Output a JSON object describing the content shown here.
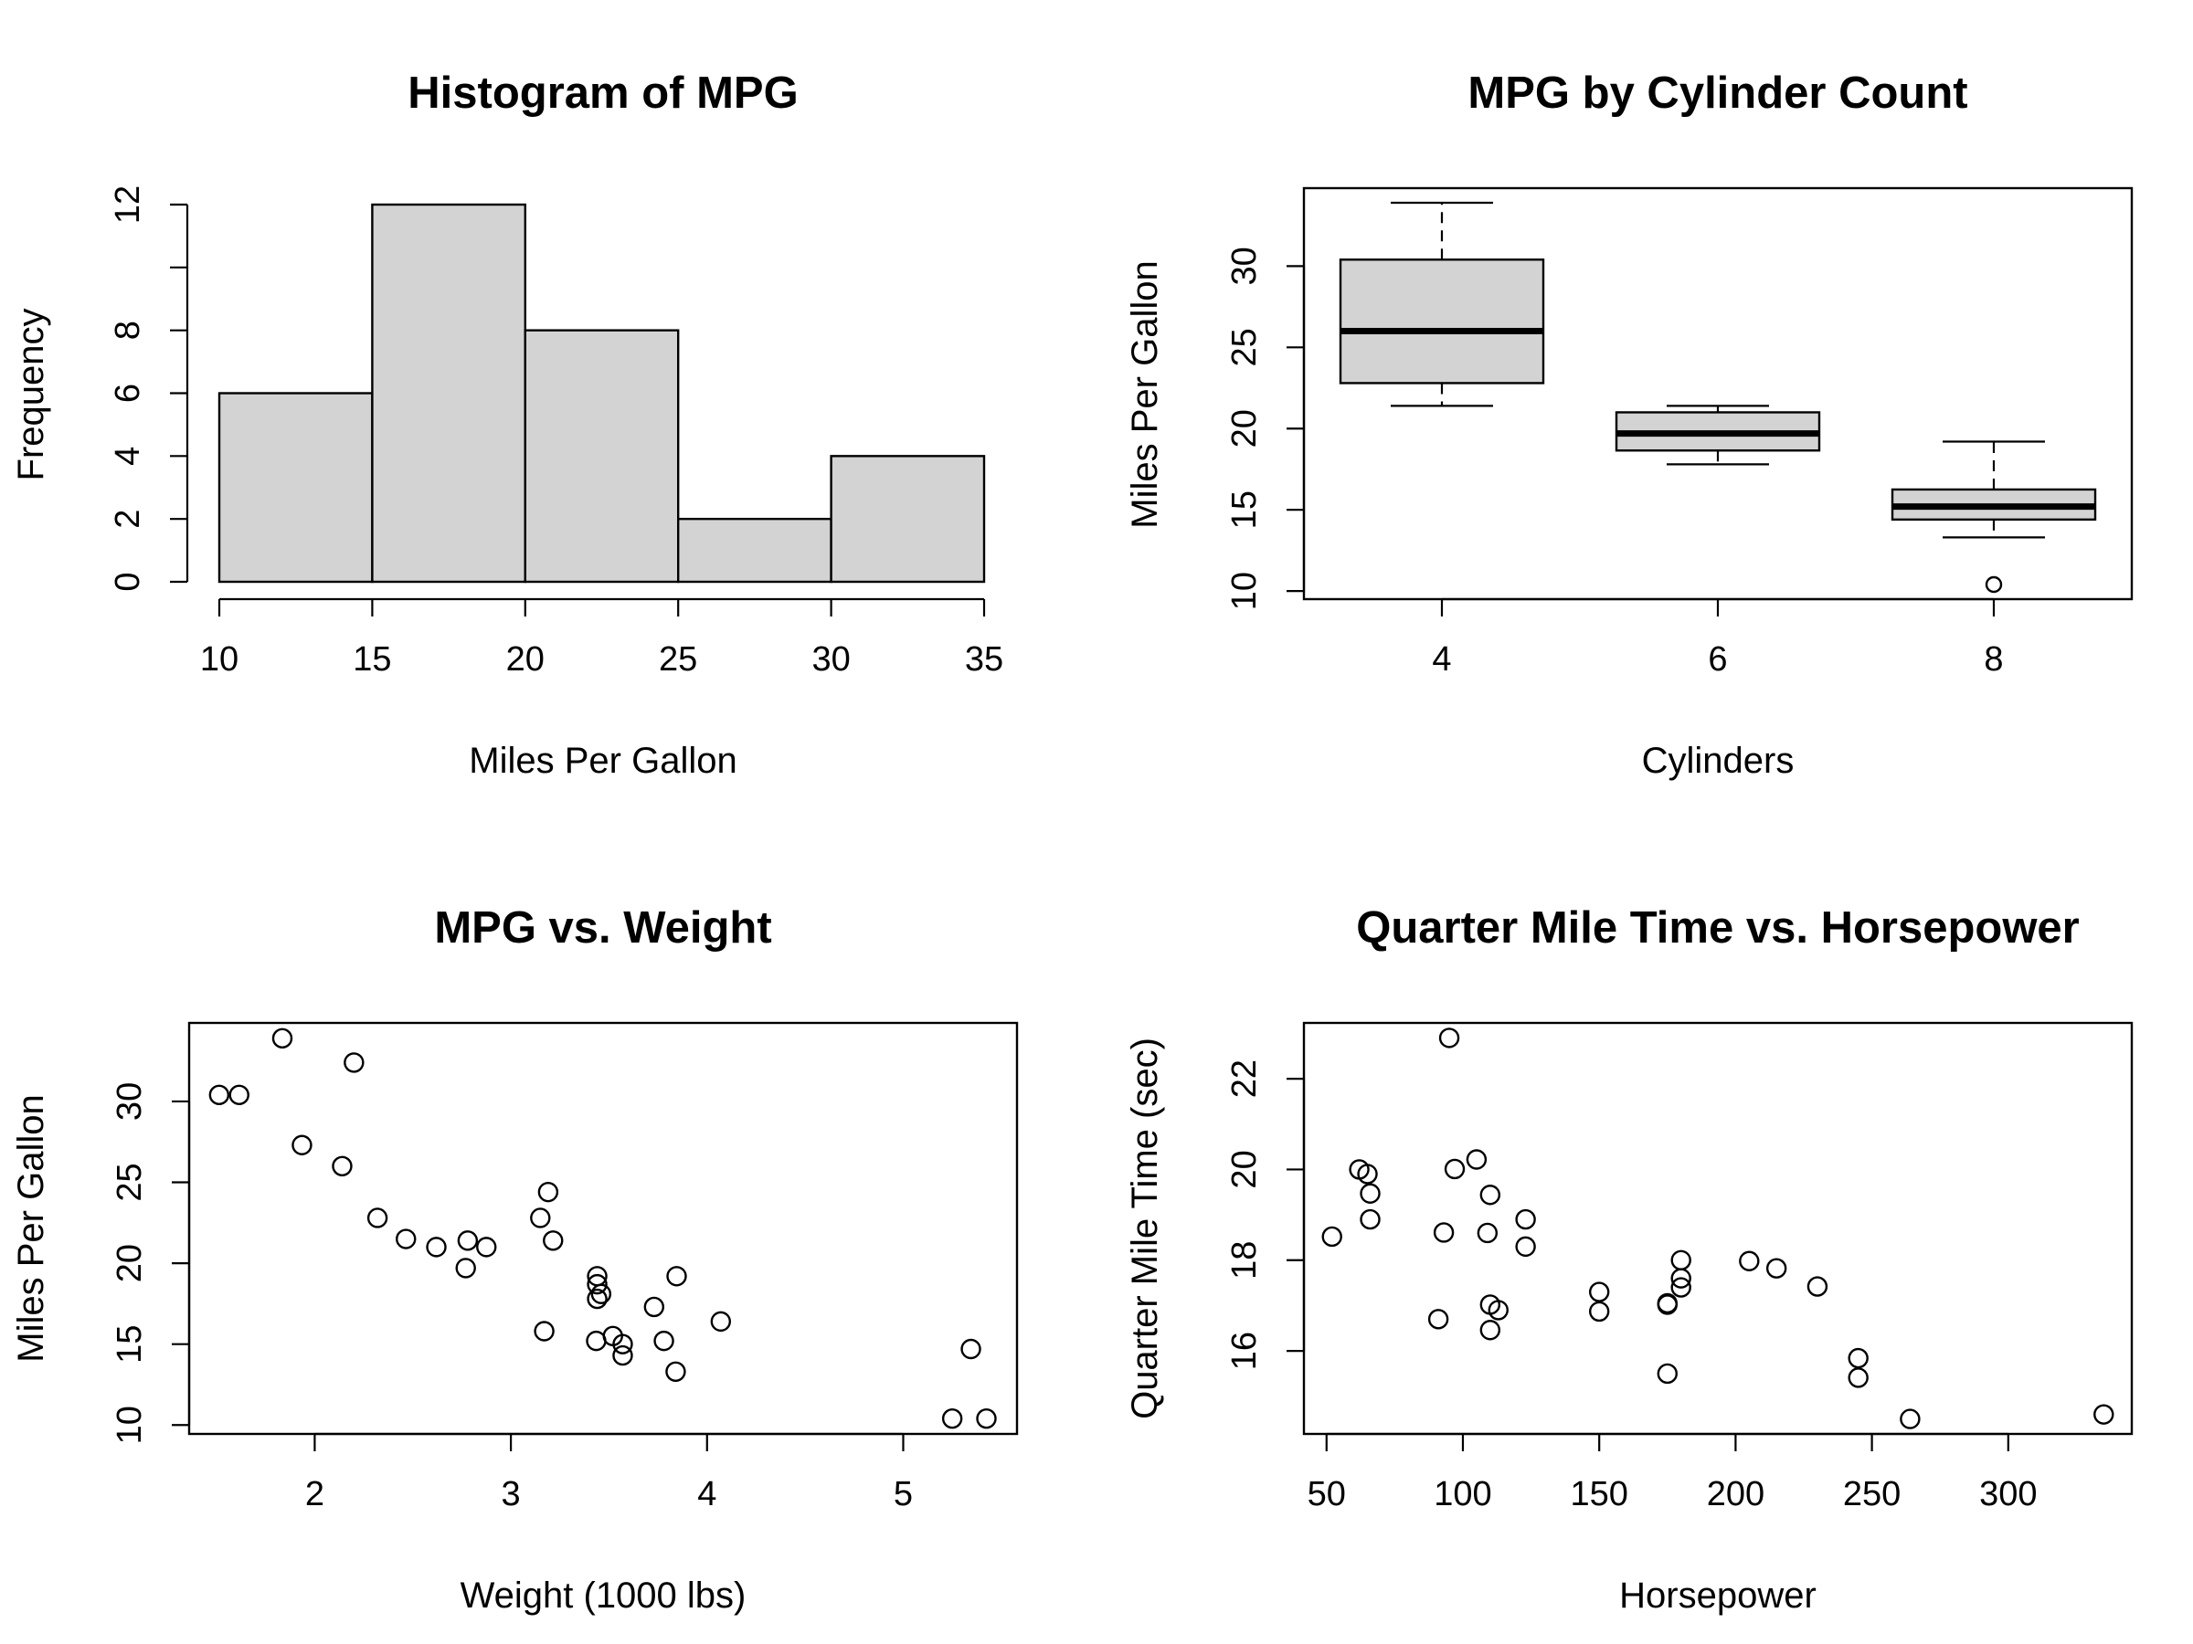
{
  "chart_data": [
    {
      "type": "bar",
      "title": "Histogram of MPG",
      "xlabel": "Miles Per Gallon",
      "ylabel": "Frequency",
      "bins": [
        {
          "from": 10,
          "to": 15,
          "count": 6
        },
        {
          "from": 15,
          "to": 20,
          "count": 12
        },
        {
          "from": 20,
          "to": 25,
          "count": 8
        },
        {
          "from": 25,
          "to": 30,
          "count": 2
        },
        {
          "from": 30,
          "to": 35,
          "count": 4
        }
      ],
      "xticks": [
        10,
        15,
        20,
        25,
        30,
        35
      ],
      "yticks": [
        0,
        2,
        4,
        6,
        8,
        12
      ],
      "xlim": [
        10,
        35
      ],
      "ylim": [
        0,
        12
      ]
    },
    {
      "type": "box",
      "title": "MPG by Cylinder Count",
      "xlabel": "Cylinders",
      "ylabel": "Miles Per Gallon",
      "categories": [
        "4",
        "6",
        "8"
      ],
      "boxes": [
        {
          "lower_whisker": 21.4,
          "q1": 22.8,
          "median": 26.0,
          "q3": 30.4,
          "upper_whisker": 33.9,
          "outliers": []
        },
        {
          "lower_whisker": 17.8,
          "q1": 18.65,
          "median": 19.7,
          "q3": 21.0,
          "upper_whisker": 21.4,
          "outliers": []
        },
        {
          "lower_whisker": 13.3,
          "q1": 14.4,
          "median": 15.2,
          "q3": 16.25,
          "upper_whisker": 19.2,
          "outliers": [
            10.4
          ]
        }
      ],
      "yticks": [
        10,
        15,
        20,
        25,
        30
      ],
      "ylim": [
        9.5,
        34.8
      ]
    },
    {
      "type": "scatter",
      "title": "MPG vs. Weight",
      "xlabel": "Weight (1000 lbs)",
      "ylabel": "Miles Per Gallon",
      "points": [
        [
          1.513,
          30.4
        ],
        [
          1.615,
          30.4
        ],
        [
          1.835,
          33.9
        ],
        [
          1.935,
          27.3
        ],
        [
          2.14,
          26.0
        ],
        [
          2.2,
          32.4
        ],
        [
          2.32,
          22.8
        ],
        [
          2.465,
          21.5
        ],
        [
          2.62,
          21.0
        ],
        [
          2.77,
          19.7
        ],
        [
          2.78,
          21.4
        ],
        [
          2.875,
          21.0
        ],
        [
          3.15,
          22.8
        ],
        [
          3.17,
          15.8
        ],
        [
          3.19,
          24.4
        ],
        [
          3.215,
          21.4
        ],
        [
          3.435,
          15.2
        ],
        [
          3.44,
          18.7
        ],
        [
          3.44,
          19.2
        ],
        [
          3.44,
          17.8
        ],
        [
          3.46,
          18.1
        ],
        [
          3.52,
          15.5
        ],
        [
          3.57,
          15.0
        ],
        [
          3.57,
          14.3
        ],
        [
          3.73,
          17.3
        ],
        [
          3.78,
          15.2
        ],
        [
          3.84,
          13.3
        ],
        [
          3.845,
          19.2
        ],
        [
          4.07,
          16.4
        ],
        [
          5.25,
          10.4
        ],
        [
          5.345,
          14.7
        ],
        [
          5.424,
          10.4
        ]
      ],
      "xticks": [
        2,
        3,
        4,
        5
      ],
      "yticks": [
        10,
        15,
        20,
        25,
        30
      ],
      "xlim": [
        1.36,
        5.58
      ],
      "ylim": [
        9.45,
        34.85
      ]
    },
    {
      "type": "scatter",
      "title": "Quarter Mile Time vs. Horsepower",
      "xlabel": "Horsepower",
      "ylabel": "Quarter Mile Time (sec)",
      "points": [
        [
          52,
          18.52
        ],
        [
          62,
          20.0
        ],
        [
          65,
          19.9
        ],
        [
          66,
          19.47
        ],
        [
          66,
          18.9
        ],
        [
          91,
          16.7
        ],
        [
          93,
          18.61
        ],
        [
          95,
          22.9
        ],
        [
          97,
          20.01
        ],
        [
          105,
          20.22
        ],
        [
          109,
          18.6
        ],
        [
          110,
          16.46
        ],
        [
          110,
          17.02
        ],
        [
          110,
          19.44
        ],
        [
          113,
          16.9
        ],
        [
          123,
          18.3
        ],
        [
          123,
          18.9
        ],
        [
          150,
          16.87
        ],
        [
          150,
          17.3
        ],
        [
          175,
          17.02
        ],
        [
          175,
          15.5
        ],
        [
          175,
          17.05
        ],
        [
          180,
          17.4
        ],
        [
          180,
          17.6
        ],
        [
          180,
          18.0
        ],
        [
          205,
          17.98
        ],
        [
          215,
          17.82
        ],
        [
          230,
          17.42
        ],
        [
          245,
          15.84
        ],
        [
          245,
          15.41
        ],
        [
          264,
          14.5
        ],
        [
          335,
          14.6
        ]
      ],
      "xticks": [
        50,
        100,
        150,
        200,
        250,
        300
      ],
      "yticks": [
        16,
        18,
        20,
        22
      ],
      "xlim": [
        41.7,
        345.3
      ],
      "ylim": [
        14.17,
        23.23
      ]
    }
  ]
}
